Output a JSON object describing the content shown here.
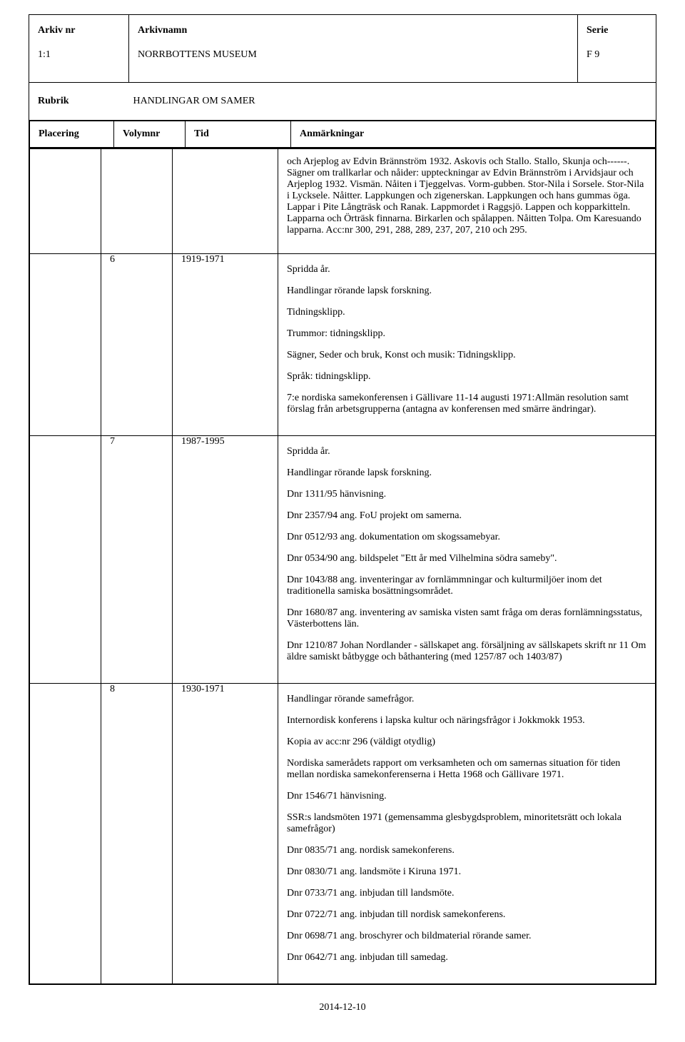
{
  "header": {
    "arkiv_nr_label": "Arkiv nr",
    "arkiv_nr_value": "1:1",
    "arkivnamn_label": "Arkivnamn",
    "arkivnamn_value": "NORRBOTTENS MUSEUM",
    "serie_label": "Serie",
    "serie_value": "F 9"
  },
  "rubrik": {
    "label": "Rubrik",
    "value": "HANDLINGAR OM SAMER"
  },
  "columns": {
    "placering": "Placering",
    "volymnr": "Volymnr",
    "tid": "Tid",
    "anm": "Anmärkningar"
  },
  "intro_block": "och Arjeplog av Edvin Brännström 1932. Askovis och Stallo. Stallo, Skunja och------. Sägner om trallkarlar och nåider: uppteckningar av Edvin Brännström i Arvidsjaur och Arjeplog 1932. Vismän. Nåiten i Tjeggelvas. Vorm-gubben. Stor-Nila i Sorsele. Stor-Nila i Lycksele. Nåitter. Lappkungen och zigenerskan. Lappkungen och hans gummas öga. Lappar i Pite Långträsk och Ranak. Lappmordet i Raggsjö. Lappen och kopparkitteln. Lapparna och Örträsk finnarna. Birkarlen och spålappen. Nåitten Tolpa. Om Karesuando lapparna. Acc:nr 300, 291, 288, 289, 237, 207, 210 och 295.",
  "entries": [
    {
      "vol": "6",
      "tid": "1919-1971",
      "lines": [
        "Spridda år.",
        "Handlingar rörande lapsk forskning.",
        "Tidningsklipp.",
        "Trummor: tidningsklipp.",
        "Sägner, Seder och bruk, Konst och musik: Tidningsklipp.",
        "Språk: tidningsklipp.",
        "7:e nordiska samekonferensen i Gällivare 11-14 augusti 1971:Allmän resolution samt förslag från arbetsgrupperna (antagna av konferensen med smärre ändringar)."
      ]
    },
    {
      "vol": "7",
      "tid": "1987-1995",
      "lines": [
        "Spridda år.",
        "Handlingar rörande lapsk forskning."
      ],
      "lines2": [
        "Dnr 1311/95 hänvisning.",
        "Dnr 2357/94 ang. FoU projekt om samerna.",
        "Dnr 0512/93 ang. dokumentation om skogssamebyar.",
        "Dnr 0534/90 ang. bildspelet \"Ett år med Vilhelmina södra sameby\".",
        "Dnr 1043/88 ang. inventeringar av fornlämmningar och kulturmiljöer inom det traditionella samiska bosättningsområdet.",
        "Dnr 1680/87 ang. inventering av samiska visten samt fråga om deras fornlämningsstatus, Västerbottens län.",
        "Dnr 1210/87 Johan Nordlander - sällskapet ang. försäljning av sällskapets skrift nr 11 Om äldre samiskt båtbygge och båthantering (med 1257/87 och 1403/87)"
      ]
    },
    {
      "vol": "8",
      "tid": "1930-1971",
      "lines": [
        "Handlingar rörande samefrågor.",
        "Internordisk konferens i lapska kultur och näringsfrågor i Jokkmokk 1953.",
        "Kopia av acc:nr 296 (väldigt otydlig)"
      ],
      "lines2": [
        "Nordiska samerådets rapport om verksamheten och om samernas situation för tiden mellan nordiska samekonferenserna i Hetta 1968 och Gällivare 1971.",
        "Dnr 1546/71 hänvisning.",
        "SSR:s landsmöten 1971 (gemensamma glesbygdsproblem, minoritetsrätt och lokala samefrågor)",
        "Dnr 0835/71 ang. nordisk samekonferens.",
        "Dnr 0830/71 ang. landsmöte i Kiruna 1971.",
        "Dnr 0733/71 ang. inbjudan till landsmöte.",
        "Dnr 0722/71 ang. inbjudan till nordisk samekonferens.",
        "Dnr 0698/71 ang. broschyrer och bildmaterial rörande samer.",
        "Dnr 0642/71 ang. inbjudan till samedag."
      ]
    }
  ],
  "footer_date": "2014-12-10"
}
